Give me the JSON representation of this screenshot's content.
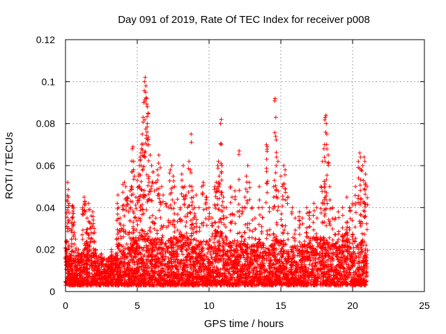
{
  "chart_data": {
    "type": "scatter",
    "title": "Day 091 of 2019, Rate Of TEC Index for receiver p008",
    "xlabel": "GPS time / hours",
    "ylabel": "ROTI / TECUs",
    "xlim": [
      0,
      25
    ],
    "ylim": [
      0,
      0.12
    ],
    "x_ticks": [
      "0",
      "5",
      "10",
      "15",
      "20",
      "25"
    ],
    "y_ticks": [
      "0",
      "0.02",
      "0.04",
      "0.06",
      "0.08",
      "0.1",
      "0.12"
    ],
    "grid": true,
    "legend": "none",
    "marker": "+",
    "series": [
      {
        "color": "#ff0000",
        "points": [
          [
            0.05,
            0.024
          ],
          [
            0.1,
            0.02
          ],
          [
            0.12,
            0.043
          ],
          [
            0.15,
            0.052
          ],
          [
            0.2,
            0.045
          ],
          [
            0.25,
            0.03
          ],
          [
            0.3,
            0.018
          ],
          [
            0.35,
            0.012
          ],
          [
            0.4,
            0.029
          ],
          [
            0.45,
            0.033
          ],
          [
            0.5,
            0.041
          ],
          [
            0.55,
            0.04
          ],
          [
            0.6,
            0.033
          ],
          [
            0.7,
            0.025
          ],
          [
            0.9,
            0.02
          ],
          [
            1.1,
            0.018
          ],
          [
            1.2,
            0.04
          ],
          [
            1.3,
            0.045
          ],
          [
            1.35,
            0.043
          ],
          [
            1.4,
            0.038
          ],
          [
            1.5,
            0.035
          ],
          [
            1.6,
            0.042
          ],
          [
            1.7,
            0.039
          ],
          [
            1.8,
            0.036
          ],
          [
            1.9,
            0.038
          ],
          [
            2.0,
            0.03
          ],
          [
            2.1,
            0.02
          ],
          [
            2.5,
            0.018
          ],
          [
            3.0,
            0.016
          ],
          [
            3.2,
            0.02
          ],
          [
            3.5,
            0.018
          ],
          [
            3.6,
            0.042
          ],
          [
            3.65,
            0.046
          ],
          [
            3.7,
            0.04
          ],
          [
            3.8,
            0.035
          ],
          [
            3.9,
            0.03
          ],
          [
            4.0,
            0.051
          ],
          [
            4.1,
            0.052
          ],
          [
            4.2,
            0.05
          ],
          [
            4.3,
            0.045
          ],
          [
            4.4,
            0.038
          ],
          [
            4.5,
            0.048
          ],
          [
            4.6,
            0.057
          ],
          [
            4.65,
            0.068
          ],
          [
            4.7,
            0.069
          ],
          [
            4.75,
            0.062
          ],
          [
            4.8,
            0.055
          ],
          [
            4.9,
            0.045
          ],
          [
            5.0,
            0.053
          ],
          [
            5.1,
            0.055
          ],
          [
            5.15,
            0.06
          ],
          [
            5.2,
            0.064
          ],
          [
            5.25,
            0.066
          ],
          [
            5.3,
            0.068
          ],
          [
            5.35,
            0.075
          ],
          [
            5.4,
            0.083
          ],
          [
            5.45,
            0.09
          ],
          [
            5.5,
            0.1
          ],
          [
            5.55,
            0.102
          ],
          [
            5.6,
            0.098
          ],
          [
            5.65,
            0.092
          ],
          [
            5.7,
            0.088
          ],
          [
            5.75,
            0.085
          ],
          [
            5.8,
            0.07
          ],
          [
            5.9,
            0.065
          ],
          [
            6.0,
            0.06
          ],
          [
            6.1,
            0.057
          ],
          [
            6.2,
            0.048
          ],
          [
            6.3,
            0.052
          ],
          [
            6.4,
            0.058
          ],
          [
            6.5,
            0.065
          ],
          [
            6.6,
            0.059
          ],
          [
            6.7,
            0.05
          ],
          [
            6.8,
            0.046
          ],
          [
            7.0,
            0.042
          ],
          [
            7.2,
            0.04
          ],
          [
            7.3,
            0.058
          ],
          [
            7.4,
            0.06
          ],
          [
            7.5,
            0.055
          ],
          [
            7.6,
            0.05
          ],
          [
            7.8,
            0.044
          ],
          [
            8.0,
            0.04
          ],
          [
            8.1,
            0.056
          ],
          [
            8.2,
            0.06
          ],
          [
            8.3,
            0.05
          ],
          [
            8.4,
            0.046
          ],
          [
            8.5,
            0.04
          ],
          [
            8.6,
            0.062
          ],
          [
            8.7,
            0.058
          ],
          [
            8.75,
            0.075
          ],
          [
            8.8,
            0.05
          ],
          [
            8.9,
            0.045
          ],
          [
            9.0,
            0.04
          ],
          [
            9.1,
            0.046
          ],
          [
            9.3,
            0.04
          ],
          [
            9.5,
            0.05
          ],
          [
            9.6,
            0.052
          ],
          [
            9.8,
            0.045
          ],
          [
            10.0,
            0.04
          ],
          [
            10.2,
            0.035
          ],
          [
            10.4,
            0.05
          ],
          [
            10.5,
            0.052
          ],
          [
            10.6,
            0.06
          ],
          [
            10.65,
            0.062
          ],
          [
            10.7,
            0.055
          ],
          [
            10.8,
            0.08
          ],
          [
            10.85,
            0.082
          ],
          [
            10.9,
            0.06
          ],
          [
            11.0,
            0.045
          ],
          [
            11.2,
            0.04
          ],
          [
            11.5,
            0.05
          ],
          [
            11.6,
            0.045
          ],
          [
            11.8,
            0.048
          ],
          [
            12.0,
            0.038
          ],
          [
            12.1,
            0.067
          ],
          [
            12.3,
            0.04
          ],
          [
            12.5,
            0.045
          ],
          [
            12.6,
            0.055
          ],
          [
            12.7,
            0.06
          ],
          [
            12.8,
            0.052
          ],
          [
            13.0,
            0.04
          ],
          [
            13.2,
            0.035
          ],
          [
            13.5,
            0.05
          ],
          [
            13.7,
            0.04
          ],
          [
            14.0,
            0.07
          ],
          [
            14.05,
            0.069
          ],
          [
            14.2,
            0.04
          ],
          [
            14.5,
            0.05
          ],
          [
            14.6,
            0.092
          ],
          [
            14.65,
            0.083
          ],
          [
            14.7,
            0.064
          ],
          [
            14.8,
            0.062
          ],
          [
            15.0,
            0.055
          ],
          [
            15.1,
            0.05
          ],
          [
            15.2,
            0.06
          ],
          [
            15.3,
            0.058
          ],
          [
            15.5,
            0.045
          ],
          [
            15.8,
            0.04
          ],
          [
            16.0,
            0.035
          ],
          [
            16.3,
            0.038
          ],
          [
            16.5,
            0.035
          ],
          [
            16.8,
            0.04
          ],
          [
            17.0,
            0.038
          ],
          [
            17.3,
            0.042
          ],
          [
            17.5,
            0.04
          ],
          [
            17.8,
            0.05
          ],
          [
            17.9,
            0.062
          ],
          [
            18.0,
            0.068
          ],
          [
            18.05,
            0.07
          ],
          [
            18.1,
            0.083
          ],
          [
            18.15,
            0.084
          ],
          [
            18.2,
            0.075
          ],
          [
            18.3,
            0.065
          ],
          [
            18.4,
            0.05
          ],
          [
            18.6,
            0.04
          ],
          [
            18.8,
            0.035
          ],
          [
            19.0,
            0.038
          ],
          [
            19.3,
            0.04
          ],
          [
            19.6,
            0.045
          ],
          [
            19.8,
            0.04
          ],
          [
            20.0,
            0.042
          ],
          [
            20.2,
            0.05
          ],
          [
            20.4,
            0.062
          ],
          [
            20.5,
            0.066
          ],
          [
            20.55,
            0.064
          ],
          [
            20.6,
            0.058
          ],
          [
            20.7,
            0.06
          ],
          [
            20.8,
            0.064
          ],
          [
            20.85,
            0.062
          ],
          [
            20.9,
            0.056
          ],
          [
            21.0,
            0.05
          ]
        ],
        "dense_band": [
          [
            0.0,
            0.003,
            0.017
          ],
          [
            0.5,
            0.003,
            0.016
          ],
          [
            1.0,
            0.003,
            0.018
          ],
          [
            1.5,
            0.003,
            0.024
          ],
          [
            2.0,
            0.003,
            0.018
          ],
          [
            2.5,
            0.003,
            0.016
          ],
          [
            3.0,
            0.003,
            0.016
          ],
          [
            3.5,
            0.003,
            0.018
          ],
          [
            4.0,
            0.003,
            0.02
          ],
          [
            4.5,
            0.003,
            0.022
          ],
          [
            5.0,
            0.003,
            0.025
          ],
          [
            5.5,
            0.003,
            0.028
          ],
          [
            6.0,
            0.003,
            0.026
          ],
          [
            6.5,
            0.003,
            0.025
          ],
          [
            7.0,
            0.003,
            0.024
          ],
          [
            7.5,
            0.003,
            0.026
          ],
          [
            8.0,
            0.003,
            0.028
          ],
          [
            8.5,
            0.003,
            0.026
          ],
          [
            9.0,
            0.003,
            0.025
          ],
          [
            9.5,
            0.003,
            0.024
          ],
          [
            10.0,
            0.003,
            0.025
          ],
          [
            10.5,
            0.003,
            0.03
          ],
          [
            11.0,
            0.003,
            0.028
          ],
          [
            11.5,
            0.003,
            0.024
          ],
          [
            12.0,
            0.003,
            0.022
          ],
          [
            12.5,
            0.003,
            0.024
          ],
          [
            13.0,
            0.003,
            0.022
          ],
          [
            13.5,
            0.003,
            0.024
          ],
          [
            14.0,
            0.003,
            0.022
          ],
          [
            14.5,
            0.003,
            0.025
          ],
          [
            15.0,
            0.003,
            0.024
          ],
          [
            15.5,
            0.003,
            0.022
          ],
          [
            16.0,
            0.003,
            0.022
          ],
          [
            16.5,
            0.003,
            0.024
          ],
          [
            17.0,
            0.003,
            0.026
          ],
          [
            17.5,
            0.003,
            0.026
          ],
          [
            18.0,
            0.003,
            0.026
          ],
          [
            18.5,
            0.003,
            0.024
          ],
          [
            19.0,
            0.003,
            0.026
          ],
          [
            19.5,
            0.003,
            0.028
          ],
          [
            20.0,
            0.003,
            0.026
          ],
          [
            20.5,
            0.003,
            0.026
          ],
          [
            21.0,
            0.003,
            0.02
          ]
        ]
      }
    ]
  }
}
